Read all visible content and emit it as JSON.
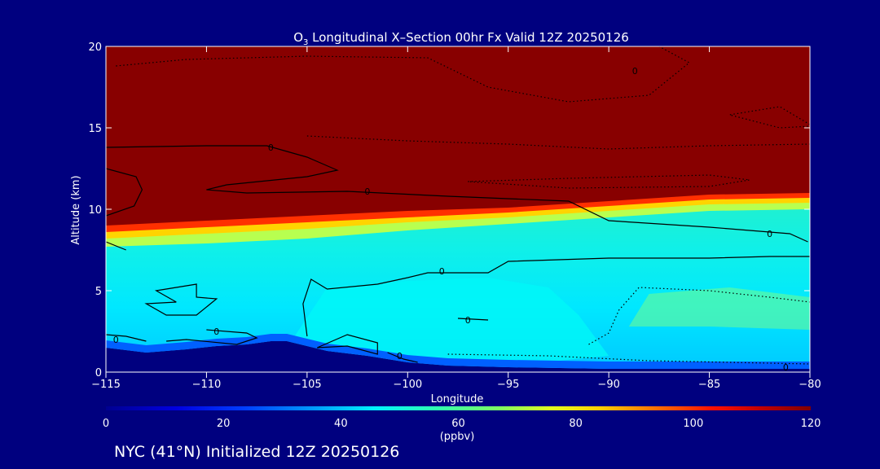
{
  "chart_data": {
    "type": "heatmap",
    "title": "O₃ Longitudinal X–Section 00hr  Fx Valid 12Z 20250126",
    "title_parts": {
      "species": "O",
      "subscript": "3",
      "rest": " Longitudinal X–Section 00hr  Fx Valid 12Z 20250126"
    },
    "xlabel": "Longitude",
    "ylabel": "Altitude (km)",
    "xlim": [
      -115,
      -80
    ],
    "ylim": [
      0,
      20
    ],
    "x_ticks": [
      -115,
      -110,
      -105,
      -100,
      -95,
      -90,
      -85,
      -80
    ],
    "x_tick_labels": [
      "−115",
      "−110",
      "−105",
      "−100",
      "−95",
      "−90",
      "−85",
      "−80"
    ],
    "y_ticks": [
      0,
      5,
      10,
      15,
      20
    ],
    "y_tick_labels": [
      "0",
      "5",
      "10",
      "15",
      "20"
    ],
    "colorbar": {
      "range": [
        0,
        120
      ],
      "ticks": [
        0,
        20,
        40,
        60,
        80,
        100,
        120
      ],
      "tick_labels": [
        "0",
        "20",
        "40",
        "60",
        "80",
        "100",
        "120"
      ],
      "unit": "(ppbv)"
    },
    "ozone_boundary_altitude_km": {
      "longitudes": [
        -115,
        -110,
        -105,
        -100,
        -95,
        -90,
        -85,
        -80
      ],
      "altitude_of_120ppbv": [
        9.0,
        9.3,
        9.6,
        9.9,
        10.1,
        10.5,
        10.9,
        11.0
      ],
      "altitude_of_100ppbv": [
        8.6,
        8.9,
        9.2,
        9.5,
        9.8,
        10.2,
        10.6,
        10.7
      ],
      "altitude_of_80ppbv": [
        8.2,
        8.5,
        8.8,
        9.2,
        9.5,
        9.9,
        10.3,
        10.4
      ],
      "altitude_of_60ppbv": [
        7.7,
        7.9,
        8.2,
        8.7,
        9.1,
        9.5,
        9.9,
        10.0
      ]
    },
    "terrain_km": {
      "longitudes": [
        -115,
        -113,
        -111,
        -109.5,
        -108,
        -106.8,
        -106,
        -105,
        -104,
        -102,
        -100,
        -98,
        -95,
        -90,
        -85,
        -80
      ],
      "altitude": [
        1.5,
        1.2,
        1.4,
        1.6,
        1.7,
        1.9,
        1.9,
        1.6,
        1.3,
        1.0,
        0.6,
        0.4,
        0.3,
        0.2,
        0.2,
        0.2
      ]
    },
    "contour_labels": [
      {
        "text": "0",
        "lon": -106.8,
        "alt": 13.8
      },
      {
        "text": "0",
        "lon": -102,
        "alt": 11.1
      },
      {
        "text": "0",
        "lon": -82,
        "alt": 8.5
      },
      {
        "text": "0",
        "lon": -98.3,
        "alt": 6.2
      },
      {
        "text": "0",
        "lon": -97,
        "alt": 3.2
      },
      {
        "text": "0",
        "lon": -114.5,
        "alt": 2.0
      },
      {
        "text": "0",
        "lon": -109.5,
        "alt": 2.5
      },
      {
        "text": "0",
        "lon": -100.4,
        "alt": 1.0
      },
      {
        "text": "0",
        "lon": -88.7,
        "alt": 18.5
      },
      {
        "text": "0",
        "lon": -81.2,
        "alt": 0.3
      }
    ],
    "grid": false,
    "legend": "colorbar-bottom"
  },
  "footer": {
    "caption": "NYC (41°N) Initialized 12Z 20250126"
  },
  "colors": {
    "background": "#00007f",
    "top_field": "#880000",
    "low_field": "#00f0f0",
    "terrain": "#00007f"
  }
}
